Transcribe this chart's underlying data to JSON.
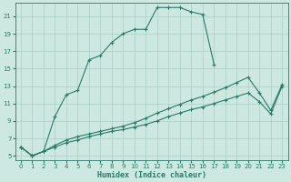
{
  "xlabel": "Humidex (Indice chaleur)",
  "background_color": "#cce8e0",
  "grid_color": "#aacfc8",
  "line_color": "#2a7a6a",
  "x_values": [
    0,
    1,
    2,
    3,
    4,
    5,
    6,
    7,
    8,
    9,
    10,
    11,
    12,
    13,
    14,
    15,
    16,
    17,
    18,
    19,
    20,
    21,
    22,
    23
  ],
  "series1": [
    6,
    5,
    5.5,
    9.5,
    12,
    12.5,
    16,
    16.5,
    18,
    19,
    19.5,
    19.5,
    22,
    22,
    22,
    21.5,
    21.2,
    15.5,
    null,
    null,
    null,
    null,
    null,
    null
  ],
  "series2": [
    6,
    5,
    5.5,
    6.0,
    6.5,
    6.8,
    7.2,
    7.5,
    7.8,
    8.0,
    8.3,
    8.6,
    9.0,
    9.5,
    9.9,
    10.3,
    10.6,
    11.0,
    11.4,
    11.8,
    12.2,
    11.2,
    9.8,
    13.0
  ],
  "series3": [
    6,
    5,
    5.5,
    6.2,
    6.8,
    7.2,
    7.5,
    7.8,
    8.1,
    8.4,
    8.8,
    9.3,
    9.9,
    10.4,
    10.9,
    11.4,
    11.8,
    12.3,
    12.8,
    13.4,
    14.0,
    12.2,
    10.2,
    13.2
  ],
  "xlim": [
    -0.5,
    23.5
  ],
  "ylim": [
    4.5,
    22.5
  ],
  "yticks": [
    5,
    7,
    9,
    11,
    13,
    15,
    17,
    19,
    21
  ],
  "xticks": [
    0,
    1,
    2,
    3,
    4,
    5,
    6,
    7,
    8,
    9,
    10,
    11,
    12,
    13,
    14,
    15,
    16,
    17,
    18,
    19,
    20,
    21,
    22,
    23
  ]
}
